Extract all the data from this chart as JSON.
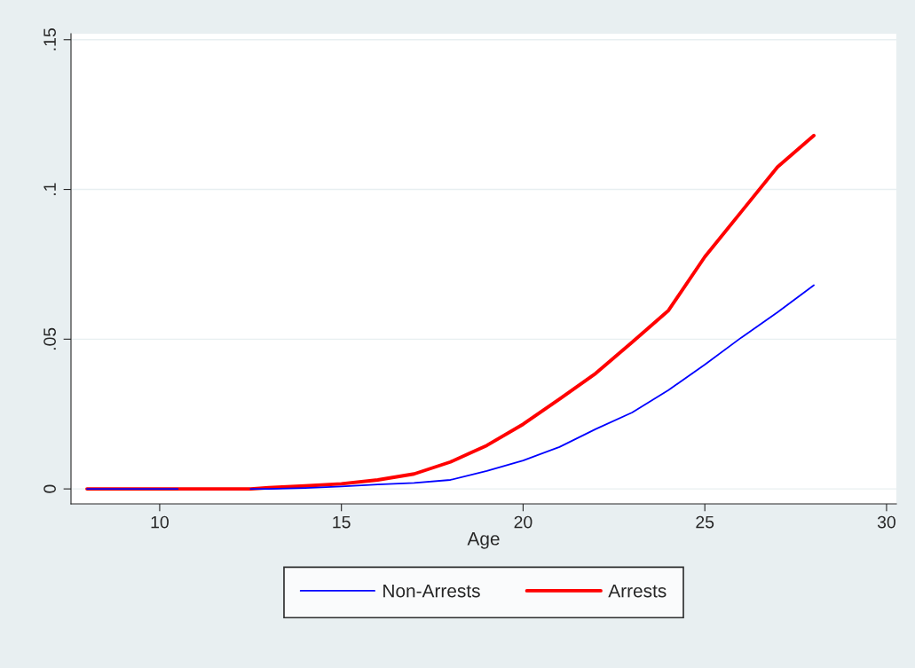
{
  "chart_data": {
    "type": "line",
    "xlabel": "Age",
    "x": [
      8,
      9,
      10,
      10.5,
      11,
      12,
      12.5,
      13,
      14,
      15,
      16,
      17,
      18,
      19,
      20,
      21,
      22,
      23,
      24,
      25,
      26,
      27,
      28
    ],
    "series": [
      {
        "name": "Non-Arrests",
        "color": "#0000ff",
        "values": [
          0,
          0,
          0,
          0,
          null,
          null,
          0,
          0,
          0.0003,
          0.0008,
          0.0015,
          0.002,
          0.003,
          0.006,
          0.0095,
          0.014,
          0.02,
          0.0255,
          0.033,
          0.0415,
          0.0505,
          0.059,
          0.068
        ]
      },
      {
        "name": "Arrests",
        "color": "#ff0000",
        "values": [
          0,
          0,
          0,
          0,
          0,
          0,
          0,
          0.0004,
          0.001,
          0.0017,
          0.003,
          0.005,
          0.009,
          0.0145,
          0.0216,
          0.03,
          0.0386,
          0.049,
          0.0596,
          0.0775,
          0.0925,
          0.1075,
          0.118
        ]
      }
    ],
    "xlim": [
      7.56,
      30.27
    ],
    "xticks": [
      10,
      15,
      20,
      25,
      30
    ],
    "ylim": [
      -0.005,
      0.152
    ],
    "yticks": [
      {
        "value": 0,
        "label": "0"
      },
      {
        "value": 0.05,
        "label": ".05"
      },
      {
        "value": 0.1,
        "label": ".1"
      },
      {
        "value": 0.15,
        "label": ".15"
      }
    ],
    "grid": "y",
    "legend": "bottom",
    "line_style": "solid",
    "marker": "none"
  }
}
